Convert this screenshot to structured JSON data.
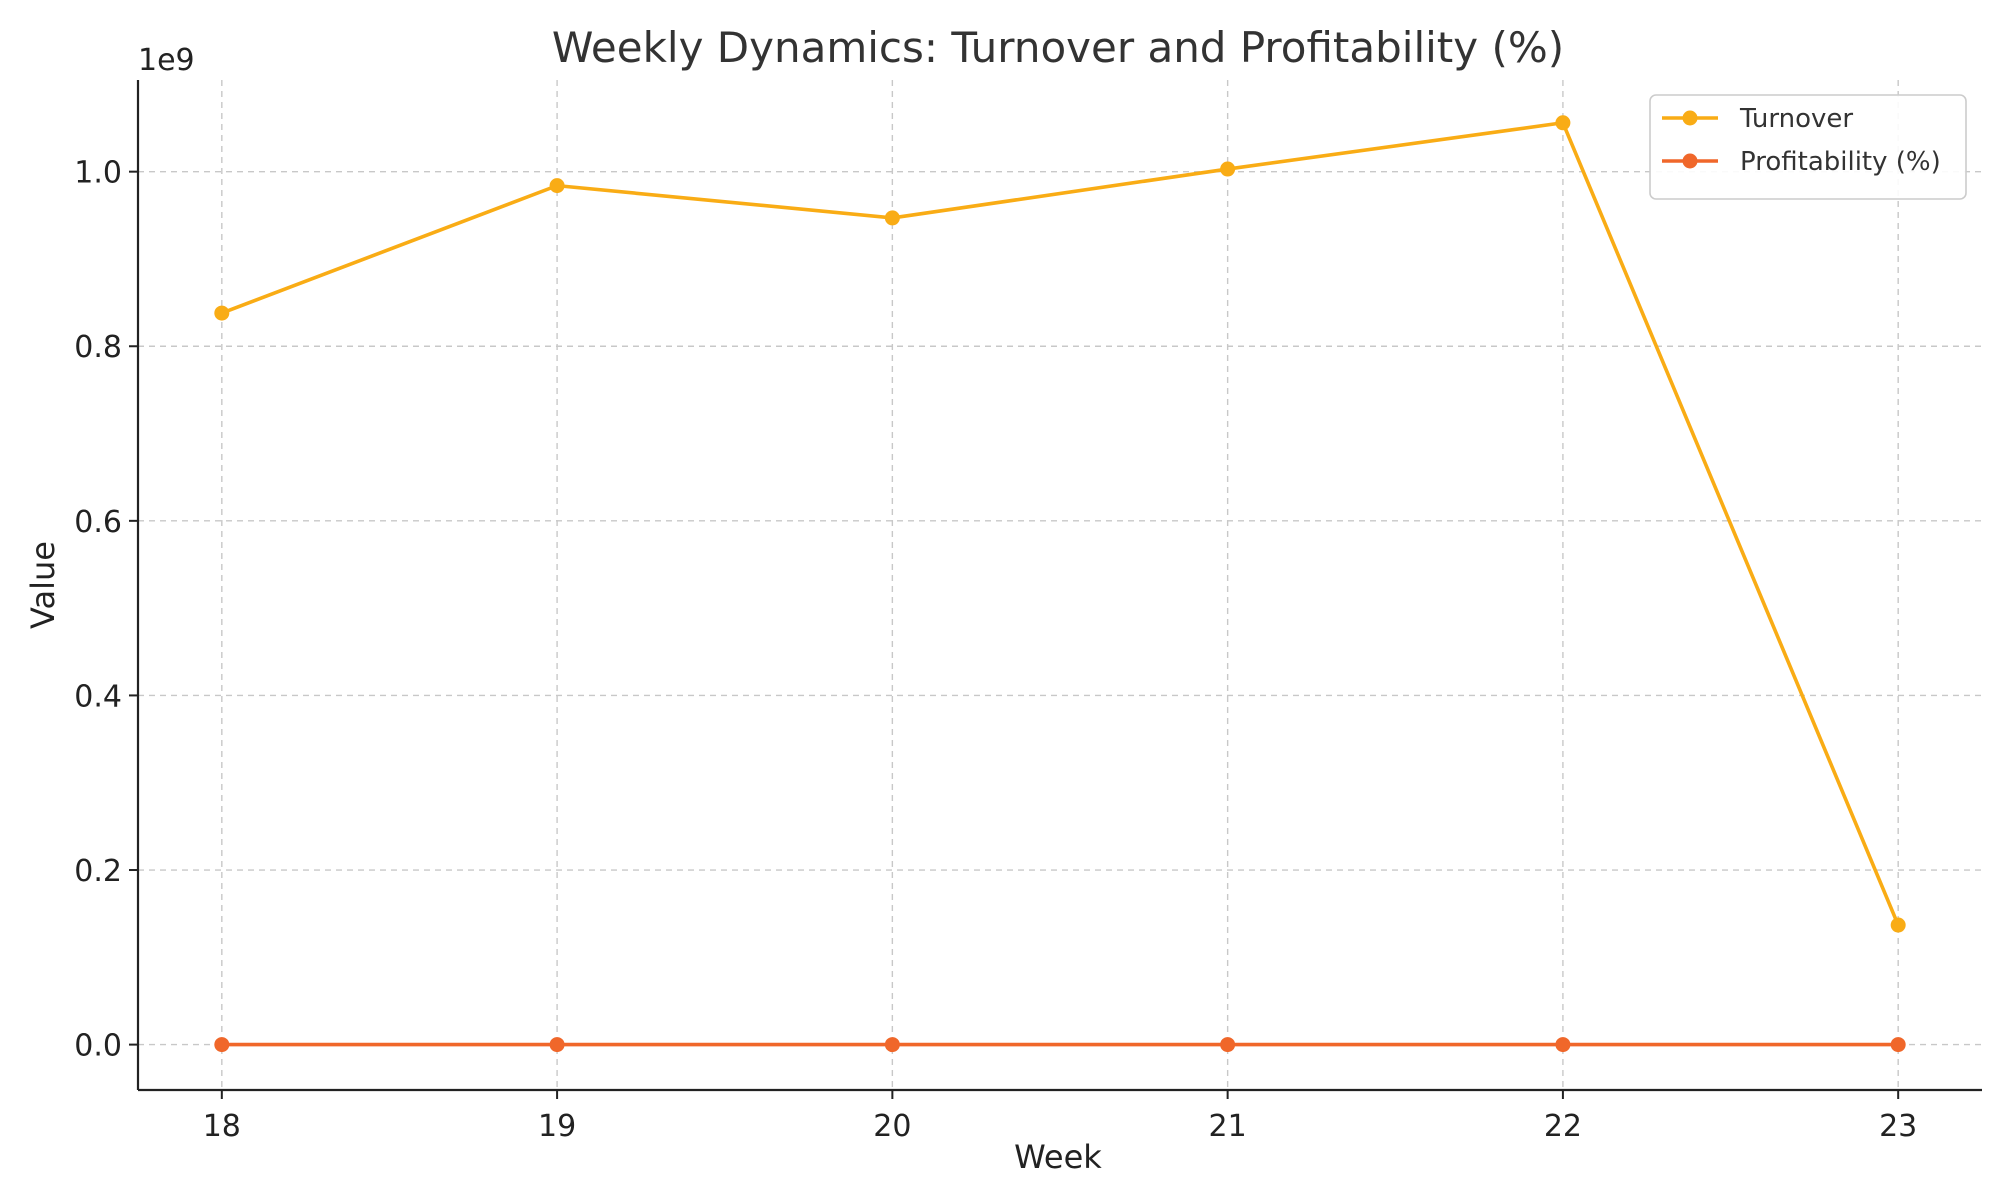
{
  "chart_data": {
    "type": "line",
    "title": "Weekly Dynamics: Turnover and Profitability (%)",
    "xlabel": "Week",
    "ylabel": "Value",
    "y_offset_label": "1e9",
    "x": [
      18,
      19,
      20,
      21,
      22,
      23
    ],
    "x_tick_labels": [
      "18",
      "19",
      "20",
      "21",
      "22",
      "23"
    ],
    "y_ticks": [
      0.0,
      0.2,
      0.4,
      0.6,
      0.8,
      1.0
    ],
    "y_tick_labels": [
      "0.0",
      "0.2",
      "0.4",
      "0.6",
      "0.8",
      "1.0"
    ],
    "xlim": [
      17.75,
      23.25
    ],
    "ylim": [
      -0.052,
      1.105
    ],
    "grid": true,
    "legend_position": "top-right",
    "series": [
      {
        "name": "Turnover",
        "color": "#F9AC15",
        "values": [
          0.838,
          0.984,
          0.947,
          1.003,
          1.056,
          0.137
        ]
      },
      {
        "name": "Profitability (%)",
        "color": "#F0672A",
        "values": [
          0.0,
          0.0,
          0.0,
          0.0,
          0.0,
          0.0
        ]
      }
    ]
  }
}
